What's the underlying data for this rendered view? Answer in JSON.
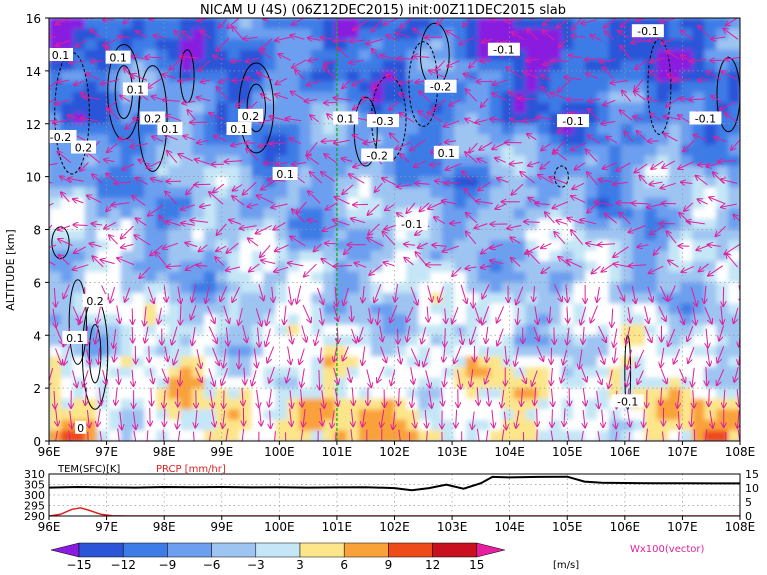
{
  "title": "NICAM U (4S) (06Z12DEC2015) init:00Z11DEC2015 slab",
  "colors": {
    "vector": "#dd1f9c",
    "contour": "#000000",
    "reference_line": "#00b000",
    "prcp": "#e02020",
    "grid": "#999999"
  },
  "chart_data": [
    {
      "type": "heatmap",
      "title": "NICAM U (4S) (06Z12DEC2015) init:00Z11DEC2015 slab",
      "xlabel": "",
      "ylabel": "ALTITUDE [km]",
      "x_ticks": [
        "96E",
        "97E",
        "98E",
        "99E",
        "100E",
        "101E",
        "102E",
        "103E",
        "104E",
        "105E",
        "106E",
        "107E",
        "108E"
      ],
      "xlim": [
        96,
        108
      ],
      "y_ticks": [
        0,
        2,
        4,
        6,
        8,
        10,
        12,
        14,
        16
      ],
      "ylim": [
        0,
        16
      ],
      "grid": true,
      "reference_line_x": 101,
      "colorbar": {
        "labels": [
          "-15",
          "-12",
          "-9",
          "-6",
          "-3",
          "3",
          "6",
          "9",
          "12",
          "15"
        ],
        "unit": "[m/s]",
        "colors": [
          "#8a1be0",
          "#2a55d8",
          "#3d7be6",
          "#6c9ff0",
          "#9ec4f2",
          "#c4e6f6",
          "#ffffff",
          "#fde58a",
          "#f9a23a",
          "#ee4a1a",
          "#c8101e",
          "#e61ea0"
        ]
      },
      "vector_legend": "Wx100(vector)",
      "contour_labels": [
        {
          "text": "0.1",
          "x": 96.2,
          "y": 14.6
        },
        {
          "text": "0.1",
          "x": 97.2,
          "y": 14.5
        },
        {
          "text": "0.1",
          "x": 97.5,
          "y": 13.3
        },
        {
          "text": "0.2",
          "x": 97.8,
          "y": 12.2
        },
        {
          "text": "0.1",
          "x": 98.1,
          "y": 11.8
        },
        {
          "text": "-0.2",
          "x": 96.2,
          "y": 11.5
        },
        {
          "text": "0.2",
          "x": 96.6,
          "y": 11.1
        },
        {
          "text": "0.2",
          "x": 99.5,
          "y": 12.3
        },
        {
          "text": "0.1",
          "x": 99.3,
          "y": 11.8
        },
        {
          "text": "0.1",
          "x": 100.1,
          "y": 10.1
        },
        {
          "text": "0.1",
          "x": 101.15,
          "y": 12.2
        },
        {
          "text": "-0.3",
          "x": 101.8,
          "y": 12.1
        },
        {
          "text": "-0.2",
          "x": 101.7,
          "y": 10.8
        },
        {
          "text": "0.1",
          "x": 102.9,
          "y": 10.9
        },
        {
          "text": "-0.1",
          "x": 103.9,
          "y": 14.8
        },
        {
          "text": "-0.2",
          "x": 102.8,
          "y": 13.4
        },
        {
          "text": "-0.1",
          "x": 102.3,
          "y": 8.2
        },
        {
          "text": "-0.1",
          "x": 105.1,
          "y": 12.1
        },
        {
          "text": "-0.1",
          "x": 106.4,
          "y": 15.5
        },
        {
          "text": "-0.1",
          "x": 107.4,
          "y": 12.2
        },
        {
          "text": "0.2",
          "x": 96.8,
          "y": 5.3
        },
        {
          "text": "0.1",
          "x": 96.45,
          "y": 3.9
        },
        {
          "text": "0",
          "x": 96.55,
          "y": 0.5
        },
        {
          "text": "-0.1",
          "x": 106.05,
          "y": 1.5
        }
      ]
    },
    {
      "type": "line",
      "ylabel_left": "TEM(SFC)[K]",
      "ylabel_right": "PRCP [mm/hr]",
      "left_ticks": [
        290,
        295,
        300,
        305,
        310
      ],
      "left_ylim": [
        290,
        310
      ],
      "right_ticks": [
        0,
        5,
        10,
        15
      ],
      "right_ylim": [
        0,
        15
      ],
      "x_ticks": [
        "96E",
        "97E",
        "98E",
        "99E",
        "100E",
        "101E",
        "102E",
        "103E",
        "104E",
        "105E",
        "106E",
        "107E",
        "108E"
      ],
      "xlim": [
        96,
        108
      ],
      "series": [
        {
          "name": "TEM(SFC)",
          "x": [
            96.0,
            96.5,
            97.0,
            97.5,
            98.0,
            98.5,
            99.0,
            99.5,
            100.0,
            100.5,
            101.0,
            101.5,
            102.0,
            102.3,
            102.6,
            102.9,
            103.2,
            103.5,
            103.7,
            104.0,
            104.5,
            105.0,
            105.3,
            105.6,
            106.0,
            106.5,
            107.0,
            107.5,
            108.0
          ],
          "y": [
            303.5,
            303.8,
            303.6,
            303.5,
            303.8,
            303.7,
            303.8,
            303.6,
            303.7,
            303.5,
            303.6,
            303.7,
            303.3,
            302.3,
            303.3,
            304.9,
            303.0,
            305.6,
            308.6,
            308.4,
            308.6,
            308.7,
            306.4,
            305.8,
            305.7,
            305.6,
            305.6,
            305.5,
            305.5
          ]
        },
        {
          "name": "PRCP",
          "x": [
            96.0,
            96.2,
            96.4,
            96.55,
            96.7,
            96.9,
            97.1,
            97.4,
            98.0,
            108.0
          ],
          "y": [
            0.0,
            0.6,
            2.4,
            2.9,
            2.0,
            0.6,
            0.1,
            0.0,
            0.0,
            0.0
          ]
        }
      ]
    }
  ]
}
